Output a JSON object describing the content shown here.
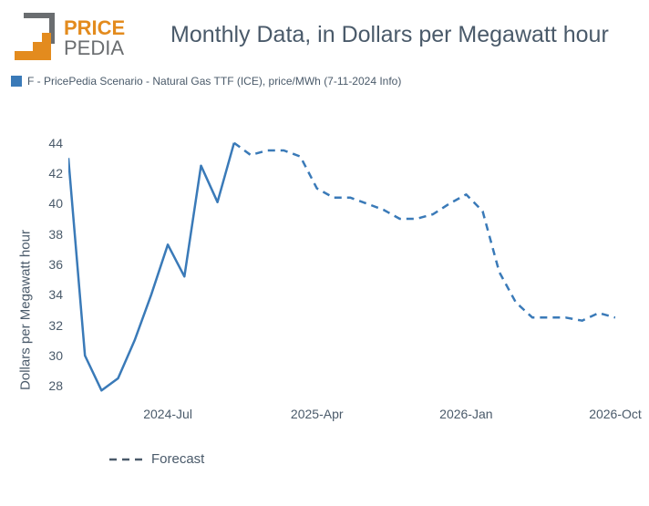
{
  "logo": {
    "word1": "PRICE",
    "word2": "PEDIA",
    "orange": "#e38b1e",
    "gray": "#6a6d70"
  },
  "title": "Monthly Data, in Dollars per Megawatt hour",
  "title_fontsize": 25,
  "legend_top": {
    "swatch_color": "#3a7ab8",
    "label": "F - PricePedia Scenario - Natural Gas TTF (ICE), price/MWh (7-11-2024 Info)"
  },
  "chart": {
    "type": "line",
    "y_axis_title": "Dollars per Megawatt hour",
    "ylim": [
      27,
      45
    ],
    "yticks": [
      28,
      30,
      32,
      34,
      36,
      38,
      40,
      42,
      44
    ],
    "xlim_index": [
      0,
      33
    ],
    "xticks": [
      {
        "idx": 6,
        "label": "2024-Jul"
      },
      {
        "idx": 15,
        "label": "2025-Apr"
      },
      {
        "idx": 24,
        "label": "2026-Jan"
      },
      {
        "idx": 33,
        "label": "2026-Oct"
      }
    ],
    "line_color": "#3a7ab8",
    "line_width": 2.5,
    "background_color": "#ffffff",
    "series_solid": [
      {
        "idx": 0,
        "v": 43.0
      },
      {
        "idx": 1,
        "v": 30.0
      },
      {
        "idx": 2,
        "v": 27.7
      },
      {
        "idx": 3,
        "v": 28.5
      },
      {
        "idx": 4,
        "v": 31.0
      },
      {
        "idx": 5,
        "v": 34.0
      },
      {
        "idx": 6,
        "v": 37.3
      },
      {
        "idx": 7,
        "v": 35.2
      },
      {
        "idx": 8,
        "v": 42.5
      },
      {
        "idx": 9,
        "v": 40.1
      },
      {
        "idx": 10,
        "v": 44.0
      }
    ],
    "series_dashed": [
      {
        "idx": 10,
        "v": 44.0
      },
      {
        "idx": 11,
        "v": 43.2
      },
      {
        "idx": 12,
        "v": 43.5
      },
      {
        "idx": 13,
        "v": 43.5
      },
      {
        "idx": 14,
        "v": 43.1
      },
      {
        "idx": 15,
        "v": 41.0
      },
      {
        "idx": 16,
        "v": 40.4
      },
      {
        "idx": 17,
        "v": 40.4
      },
      {
        "idx": 18,
        "v": 40.0
      },
      {
        "idx": 19,
        "v": 39.6
      },
      {
        "idx": 20,
        "v": 39.0
      },
      {
        "idx": 21,
        "v": 39.0
      },
      {
        "idx": 22,
        "v": 39.3
      },
      {
        "idx": 23,
        "v": 40.0
      },
      {
        "idx": 24,
        "v": 40.6
      },
      {
        "idx": 25,
        "v": 39.5
      },
      {
        "idx": 26,
        "v": 35.5
      },
      {
        "idx": 27,
        "v": 33.5
      },
      {
        "idx": 28,
        "v": 32.5
      },
      {
        "idx": 29,
        "v": 32.5
      },
      {
        "idx": 30,
        "v": 32.5
      },
      {
        "idx": 31,
        "v": 32.3
      },
      {
        "idx": 32,
        "v": 32.8
      },
      {
        "idx": 33,
        "v": 32.5
      }
    ],
    "dash_pattern": "8,6",
    "legend_forecast": "Forecast"
  }
}
